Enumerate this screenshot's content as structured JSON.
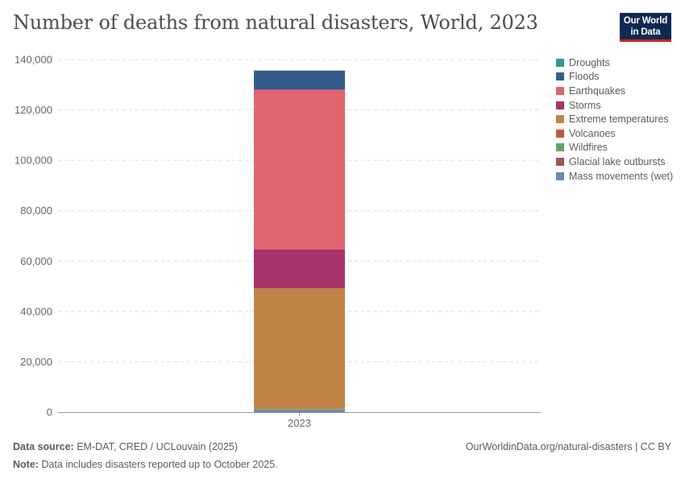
{
  "title": "Number of deaths from natural disasters, World, 2023",
  "logo": {
    "line1": "Our World",
    "line2": "in Data"
  },
  "footer": {
    "source_label": "Data source:",
    "source_text": "EM-DAT, CRED / UCLouvain (2025)",
    "note_label": "Note:",
    "note_text": "Data includes disasters reported up to October 2025.",
    "right_text": "OurWorldinData.org/natural-disasters | CC BY"
  },
  "colors": {
    "grid": "#dddddd",
    "axis": "#999999"
  },
  "chart_data": {
    "type": "bar",
    "stacked": true,
    "categories": [
      "2023"
    ],
    "ylim": [
      0,
      140000
    ],
    "yticks": [
      0,
      20000,
      40000,
      60000,
      80000,
      100000,
      120000,
      140000
    ],
    "ytick_labels": [
      "0",
      "20,000",
      "40,000",
      "60,000",
      "80,000",
      "100,000",
      "120,000",
      "140,000"
    ],
    "grid": true,
    "legend_position": "right",
    "series": [
      {
        "name": "Mass movements (wet)",
        "color": "#6d87b5",
        "values": [
          1000
        ]
      },
      {
        "name": "Glacial lake outbursts",
        "color": "#a2555e",
        "values": [
          0
        ]
      },
      {
        "name": "Wildfires",
        "color": "#6c9f62",
        "values": [
          150
        ]
      },
      {
        "name": "Volcanoes",
        "color": "#c05a3c",
        "values": [
          0
        ]
      },
      {
        "name": "Extreme temperatures",
        "color": "#c08544",
        "values": [
          48000
        ]
      },
      {
        "name": "Storms",
        "color": "#a7346b",
        "values": [
          15500
        ]
      },
      {
        "name": "Earthquakes",
        "color": "#e0656f",
        "values": [
          63400
        ]
      },
      {
        "name": "Floods",
        "color": "#355c89",
        "values": [
          7600
        ]
      },
      {
        "name": "Droughts",
        "color": "#2a9c95",
        "values": [
          0
        ]
      }
    ],
    "legend": [
      {
        "name": "Droughts",
        "color": "#2a9c95"
      },
      {
        "name": "Floods",
        "color": "#355c89"
      },
      {
        "name": "Earthquakes",
        "color": "#e0656f"
      },
      {
        "name": "Storms",
        "color": "#a7346b"
      },
      {
        "name": "Extreme temperatures",
        "color": "#c08544"
      },
      {
        "name": "Volcanoes",
        "color": "#c05a3c"
      },
      {
        "name": "Wildfires",
        "color": "#6c9f62"
      },
      {
        "name": "Glacial lake outbursts",
        "color": "#a2555e"
      },
      {
        "name": "Mass movements (wet)",
        "color": "#6d87b5"
      }
    ]
  }
}
